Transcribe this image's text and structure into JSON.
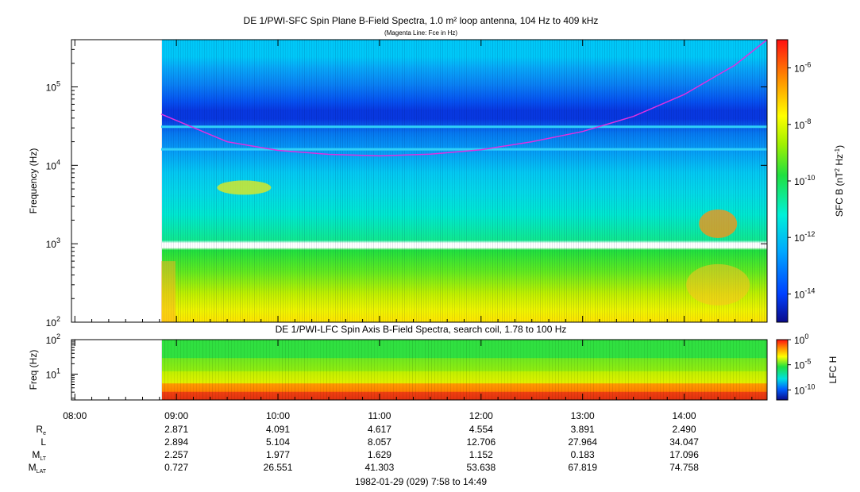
{
  "chart_data": [
    {
      "type": "heatmap",
      "title": "DE 1/PWI-SFC  Spin Plane B-Field Spectra, 1.0 m² loop antenna, 104 Hz to 409 kHz",
      "subtitle": "(Magenta Line: Fce in Hz)",
      "ylabel": "Frequency (Hz)",
      "yscale": "log",
      "ylim": [
        100,
        400000
      ],
      "yticks": [
        {
          "base": "10",
          "exp": "2"
        },
        {
          "base": "10",
          "exp": "3"
        },
        {
          "base": "10",
          "exp": "4"
        },
        {
          "base": "10",
          "exp": "5"
        }
      ],
      "colorbar_label_base": "SFC B (nT",
      "colorbar_label_mid": " Hz",
      "colorbar_label_end": ")",
      "colorbar_exp_a": "2",
      "colorbar_exp_b": "-1",
      "colorbar_scale": "log",
      "colorbar_range": [
        1e-15,
        1e-05
      ],
      "colorbar_ticks": [
        {
          "base": "10",
          "exp": "-6"
        },
        {
          "base": "10",
          "exp": "-8"
        },
        {
          "base": "10",
          "exp": "-10"
        },
        {
          "base": "10",
          "exp": "-12"
        },
        {
          "base": "10",
          "exp": "-14"
        }
      ],
      "data_start_time": "08:51",
      "gap_frequency_hz": [
        880,
        1000
      ],
      "fce_line": {
        "color": "#e030e0",
        "time": [
          "08:51",
          "09:30",
          "10:00",
          "10:30",
          "11:00",
          "11:30",
          "12:00",
          "12:30",
          "13:00",
          "13:30",
          "14:00",
          "14:30",
          "14:49"
        ],
        "hz": [
          45000,
          20000,
          15500,
          13800,
          13200,
          13900,
          15800,
          20000,
          27000,
          42000,
          80000,
          190000,
          420000
        ]
      }
    },
    {
      "type": "heatmap",
      "title": "DE 1/PWI-LFC  Spin Axis B-Field Spectra, search coil, 1.78 to 100 Hz",
      "ylabel": "Freq (Hz)",
      "yscale": "log",
      "ylim": [
        1.78,
        100
      ],
      "yticks": [
        {
          "base": "10",
          "exp": "1"
        },
        {
          "base": "10",
          "exp": "2"
        }
      ],
      "colorbar_label": "LFC H",
      "colorbar_scale": "log",
      "colorbar_range": [
        1e-12,
        1
      ],
      "colorbar_ticks": [
        {
          "base": "10",
          "exp": "0"
        },
        {
          "base": "10",
          "exp": "-5"
        },
        {
          "base": "10",
          "exp": "-10"
        }
      ]
    }
  ],
  "x_axis": {
    "range": [
      "07:58",
      "14:49"
    ],
    "ticks": [
      "08:00",
      "09:00",
      "10:00",
      "11:00",
      "12:00",
      "13:00",
      "14:00"
    ]
  },
  "ephemeris": {
    "rows": [
      {
        "label_main": "R",
        "label_sub": "e",
        "values": [
          "2.871",
          "4.091",
          "4.617",
          "4.554",
          "3.891",
          "2.490"
        ]
      },
      {
        "label_main": "L",
        "label_sub": "",
        "values": [
          "2.894",
          "5.104",
          "8.057",
          "12.706",
          "27.964",
          "34.047"
        ]
      },
      {
        "label_main": "M",
        "label_sub": "LT",
        "values": [
          "2.257",
          "1.977",
          "1.629",
          "1.152",
          "0.183",
          "17.096"
        ]
      },
      {
        "label_main": "M",
        "label_sub": "LAT",
        "values": [
          "0.727",
          "26.551",
          "41.303",
          "53.638",
          "67.819",
          "74.758"
        ]
      }
    ],
    "value_times": [
      "09:00",
      "10:00",
      "11:00",
      "12:00",
      "13:00",
      "14:00"
    ]
  },
  "footer": "1982-01-29 (029) 7:58 to 14:49"
}
